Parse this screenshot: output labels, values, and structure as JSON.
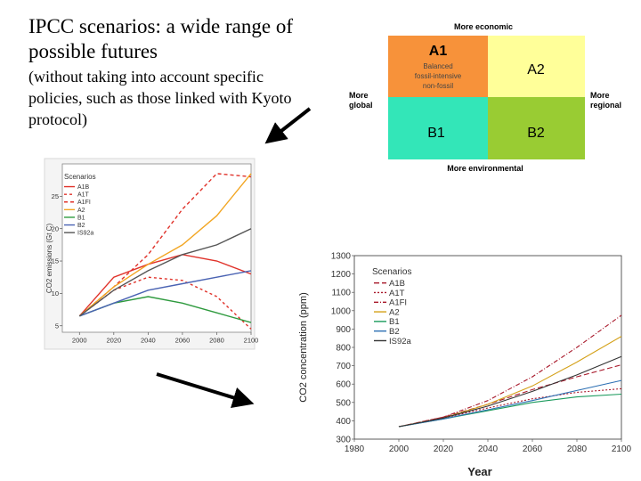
{
  "slide": {
    "title": "IPCC scenarios: a wide range of possible futures",
    "subtitle": "(without taking into account specific policies, such as those linked with Kyoto protocol)"
  },
  "quadrant": {
    "top_label": "More economic",
    "bottom_label": "More environmental",
    "left_label": "More global",
    "right_label": "More regional",
    "a1": "A1",
    "a1_note": [
      "Balanced",
      "fossil-intensive",
      "non-fossil"
    ],
    "a2": "A2",
    "b1": "B1",
    "b2": "B2",
    "colors": {
      "a1": "#f7923a",
      "a2": "#ffff99",
      "b1": "#33e6b8",
      "b2": "#99cc33"
    }
  },
  "chart_data": [
    {
      "type": "line",
      "title": "",
      "xlabel": "",
      "ylabel": "CO2 emissions (Gt C)",
      "legend_title": "Scenarios",
      "x": [
        2000,
        2020,
        2040,
        2060,
        2080,
        2100
      ],
      "xticks": [
        "2000",
        "2020",
        "2040",
        "2060",
        "2080",
        "2100"
      ],
      "yticks": [
        "5",
        "10",
        "15",
        "20",
        "25"
      ],
      "xlim": [
        1990,
        2100
      ],
      "ylim": [
        4,
        30
      ],
      "series": [
        {
          "name": "A1B",
          "color": "#e0322a",
          "dash": "",
          "values": [
            6.5,
            12.5,
            14.5,
            16.0,
            15.0,
            13.0
          ]
        },
        {
          "name": "A1T",
          "color": "#e0322a",
          "dash": "3,3",
          "values": [
            6.5,
            10.5,
            12.5,
            12.0,
            9.5,
            4.5
          ]
        },
        {
          "name": "A1FI",
          "color": "#e0322a",
          "dash": "4,3",
          "values": [
            6.5,
            11.0,
            16.0,
            23.0,
            28.5,
            28.0
          ]
        },
        {
          "name": "A2",
          "color": "#f2a623",
          "dash": "",
          "values": [
            6.5,
            11.0,
            14.5,
            17.5,
            22.0,
            28.5
          ]
        },
        {
          "name": "B1",
          "color": "#2e9a3e",
          "dash": "",
          "values": [
            6.5,
            8.5,
            9.5,
            8.5,
            7.0,
            5.5
          ]
        },
        {
          "name": "B2",
          "color": "#4a63b3",
          "dash": "",
          "values": [
            6.5,
            8.5,
            10.5,
            11.5,
            12.5,
            13.5
          ]
        },
        {
          "name": "IS92a",
          "color": "#555555",
          "dash": "",
          "values": [
            6.5,
            10.5,
            13.5,
            16.0,
            17.5,
            20.0
          ]
        }
      ]
    },
    {
      "type": "line",
      "title": "",
      "xlabel": "Year",
      "ylabel": "CO2 concentration (ppm)",
      "legend_title": "Scenarios",
      "x": [
        2000,
        2020,
        2040,
        2060,
        2080,
        2100
      ],
      "xticks": [
        "1980",
        "2000",
        "2020",
        "2040",
        "2060",
        "2080",
        "2100"
      ],
      "yticks": [
        "300",
        "400",
        "500",
        "600",
        "700",
        "800",
        "900",
        "1000",
        "1100",
        "1200",
        "1300"
      ],
      "xlim": [
        1980,
        2100
      ],
      "ylim": [
        300,
        1300
      ],
      "series": [
        {
          "name": "A1B",
          "color": "#a8182a",
          "dash": "6,3",
          "values": [
            368,
            420,
            490,
            570,
            640,
            705
          ]
        },
        {
          "name": "A1T",
          "color": "#a8182a",
          "dash": "2,2",
          "values": [
            368,
            415,
            470,
            520,
            555,
            575
          ]
        },
        {
          "name": "A1FI",
          "color": "#a8182a",
          "dash": "5,2,1,2",
          "values": [
            368,
            420,
            510,
            640,
            800,
            975
          ]
        },
        {
          "name": "A2",
          "color": "#d4a017",
          "dash": "",
          "values": [
            368,
            415,
            490,
            590,
            720,
            860
          ]
        },
        {
          "name": "B1",
          "color": "#1a9a5c",
          "dash": "",
          "values": [
            368,
            410,
            455,
            500,
            530,
            545
          ]
        },
        {
          "name": "B2",
          "color": "#2c6fb3",
          "dash": "",
          "values": [
            368,
            410,
            460,
            510,
            565,
            620
          ]
        },
        {
          "name": "IS92a",
          "color": "#333333",
          "dash": "",
          "values": [
            368,
            415,
            480,
            560,
            650,
            750
          ]
        }
      ]
    }
  ]
}
